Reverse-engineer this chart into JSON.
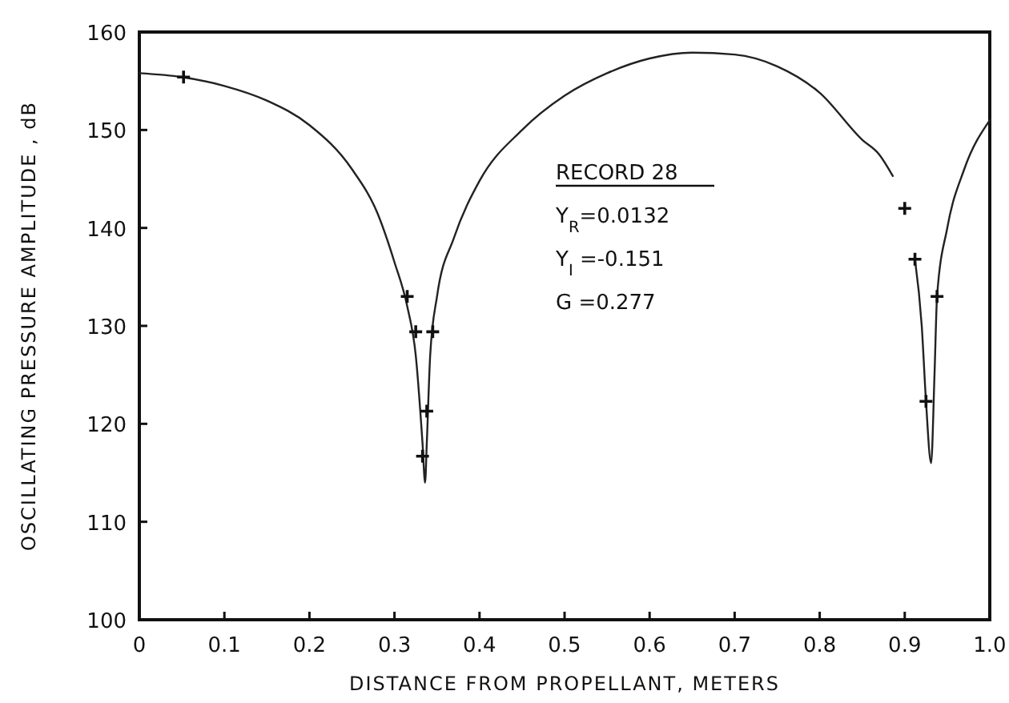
{
  "chart_data": {
    "type": "line",
    "xlabel": "DISTANCE FROM PROPELLANT, METERS",
    "ylabel": "OSCILLATING PRESSURE AMPLITUDE , dB",
    "xlim": [
      0,
      1
    ],
    "ylim": [
      100,
      160
    ],
    "xticks": [
      0,
      0.1,
      0.2,
      0.3,
      0.4,
      0.5,
      0.6,
      0.7,
      0.8,
      0.9,
      {
        "value": 1,
        "label": "1.0"
      }
    ],
    "yticks": [
      100,
      110,
      120,
      130,
      140,
      150,
      160
    ],
    "grid": false,
    "annotations": [
      "RECORD 28",
      "Y$_{R}$=0.0132",
      "Y$_{I}$ =-0.151",
      "G =0.277"
    ],
    "series": [
      {
        "color": "#222222",
        "marker": "none",
        "line_style": "solid",
        "x": [
          0,
          0.05,
          0.1,
          0.15,
          0.2,
          0.25,
          0.28,
          0.3,
          0.315,
          0.325,
          0.333,
          0.336,
          0.338,
          0.342,
          0.35,
          0.37,
          0.4,
          0.45,
          0.5,
          0.55,
          0.6,
          0.65,
          0.7,
          0.75,
          0.8,
          0.85,
          0.87,
          0.886,
          null,
          0.912,
          0.92,
          0.925,
          0.931,
          0.935,
          0.938,
          0.95,
          0.97,
          1.0
        ],
        "values": [
          155.8,
          155.4,
          154.5,
          153,
          150.5,
          146,
          141.5,
          136.5,
          132,
          127,
          118,
          114,
          118,
          127,
          133,
          139,
          144.8,
          150,
          153.5,
          155.8,
          157.3,
          157.9,
          157.7,
          156.5,
          153.8,
          149,
          147.5,
          145.3,
          null,
          136.8,
          130,
          122.3,
          116,
          125,
          133,
          140,
          146,
          151
        ]
      },
      {
        "type": "scatter",
        "color": "#111111",
        "marker": "cross",
        "x": [
          0.052,
          0.315,
          0.325,
          0.345,
          0.333,
          0.338,
          0.9,
          0.912,
          0.925,
          0.938
        ],
        "values": [
          155.4,
          133,
          129.4,
          129.4,
          116.7,
          121.3,
          142,
          136.8,
          122.3,
          133
        ]
      }
    ]
  }
}
